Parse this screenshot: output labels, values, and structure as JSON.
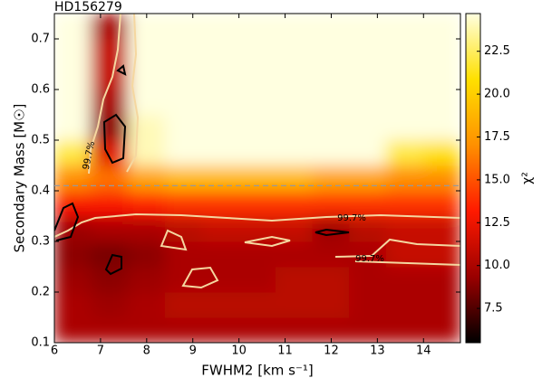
{
  "chart_data": {
    "type": "heatmap",
    "title": "HD156279",
    "x_label": "FWHM2 [km s⁻¹]",
    "y_label": "Secondary Mass [M☉]",
    "colorbar_label": "χ²",
    "x_edges": [
      6.0,
      6.8,
      7.6,
      8.4,
      9.2,
      10.0,
      10.8,
      11.6,
      12.4,
      13.2,
      14.0,
      14.8
    ],
    "y_edges": [
      0.1,
      0.15,
      0.2,
      0.25,
      0.3,
      0.35,
      0.4,
      0.45,
      0.5,
      0.55,
      0.6,
      0.65,
      0.7,
      0.75
    ],
    "z": [
      [
        10,
        10,
        10,
        10,
        10,
        10,
        10,
        10,
        10,
        10,
        10
      ],
      [
        10,
        9.5,
        10,
        10.5,
        10.5,
        10.5,
        10.5,
        10.5,
        10,
        10,
        10
      ],
      [
        9.5,
        9,
        9.5,
        10,
        10,
        10,
        10.5,
        10.5,
        10,
        10,
        10
      ],
      [
        9,
        8.5,
        9,
        10,
        10,
        10,
        10,
        10,
        10,
        11,
        11
      ],
      [
        9.5,
        10,
        10,
        10.5,
        11,
        11,
        11,
        9.5,
        10.5,
        11,
        11
      ],
      [
        13,
        13,
        13.5,
        14,
        14,
        14,
        14,
        14,
        14,
        14,
        14
      ],
      [
        17,
        16,
        18,
        19,
        19,
        19,
        19,
        18,
        18,
        17,
        17
      ],
      [
        22,
        12,
        24,
        24.7,
        24.7,
        24.7,
        24.7,
        24.7,
        24.7,
        22,
        21
      ],
      [
        24.7,
        9,
        24,
        24.7,
        24.7,
        24.7,
        24.7,
        24.7,
        24.7,
        24.7,
        24.7
      ],
      [
        24.7,
        10,
        24.7,
        24.7,
        24.7,
        24.7,
        24.7,
        24.7,
        24.7,
        24.7,
        24.7
      ],
      [
        24.7,
        11,
        24.7,
        24.7,
        24.7,
        24.7,
        24.7,
        24.7,
        24.7,
        24.7,
        24.7
      ],
      [
        24.7,
        11,
        24.7,
        24.7,
        24.7,
        24.7,
        24.7,
        24.7,
        24.7,
        24.7,
        24.7
      ],
      [
        24.7,
        10,
        24.7,
        24.7,
        24.7,
        24.7,
        24.7,
        24.7,
        24.7,
        24.7,
        24.7
      ]
    ],
    "colormap": [
      "#000000",
      "#9a0000",
      "#ff1a00",
      "#ff9000",
      "#ffe000",
      "#ffffe0"
    ],
    "clim": [
      5.5,
      24.7
    ],
    "cticks": [
      7.5,
      {
        "value": 10.0,
        "label": "10.0"
      },
      12.5,
      {
        "value": 15.0,
        "label": "15.0"
      },
      17.5,
      {
        "value": 20.0,
        "label": "20.0"
      },
      22.5
    ],
    "xlim": [
      6,
      14.8
    ],
    "xticks": [
      6,
      7,
      8,
      9,
      10,
      11,
      12,
      13,
      14
    ],
    "ylim": [
      0.1,
      0.75
    ],
    "yticks": [
      0.1,
      0.2,
      0.3,
      0.4,
      0.5,
      0.6,
      0.7
    ],
    "hline": 0.41,
    "contour_labels": [
      "99.7%",
      "99.7%",
      "99.7%"
    ]
  }
}
